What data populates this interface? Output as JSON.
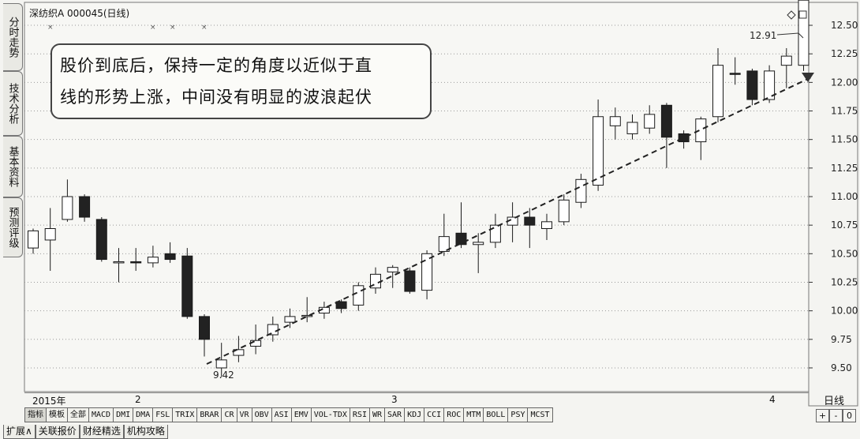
{
  "stock": {
    "name": "深纺织A",
    "code": "000045",
    "period": "(日线)"
  },
  "side_tabs": [
    "分时走势",
    "技术分析",
    "基本资料",
    "预测评级"
  ],
  "annotation": {
    "line1": "股价到底后，保持一定的角度以近似于直",
    "line2": "线的形势上涨，中间没有明显的波浪起伏"
  },
  "chart_data": {
    "type": "candlestick",
    "title": "",
    "ylim": [
      9.32,
      12.68
    ],
    "yticks": [
      "12.50",
      "12.25",
      "12.00",
      "11.75",
      "11.50",
      "11.25",
      "11.00",
      "10.75",
      "10.50",
      "10.25",
      "10.00",
      "9.75",
      "9.50"
    ],
    "date_labels": [
      "2015年",
      "2",
      "3",
      "4"
    ],
    "grid": true,
    "candles": [
      {
        "o": 10.55,
        "c": 10.7,
        "h": 10.72,
        "l": 10.5
      },
      {
        "o": 10.62,
        "c": 10.72,
        "h": 10.9,
        "l": 10.35
      },
      {
        "o": 10.8,
        "c": 11.0,
        "h": 11.15,
        "l": 10.78
      },
      {
        "o": 11.0,
        "c": 10.82,
        "h": 11.02,
        "l": 10.78
      },
      {
        "o": 10.8,
        "c": 10.45,
        "h": 10.82,
        "l": 10.43
      },
      {
        "o": 10.43,
        "c": 10.43,
        "h": 10.55,
        "l": 10.25
      },
      {
        "o": 10.43,
        "c": 10.42,
        "h": 10.55,
        "l": 10.35
      },
      {
        "o": 10.42,
        "c": 10.47,
        "h": 10.57,
        "l": 10.38
      },
      {
        "o": 10.5,
        "c": 10.45,
        "h": 10.6,
        "l": 10.42
      },
      {
        "o": 10.48,
        "c": 9.95,
        "h": 10.55,
        "l": 9.93
      },
      {
        "o": 9.95,
        "c": 9.75,
        "h": 9.97,
        "l": 9.6
      },
      {
        "o": 9.5,
        "c": 9.57,
        "h": 9.72,
        "l": 9.42
      },
      {
        "o": 9.61,
        "c": 9.66,
        "h": 9.78,
        "l": 9.55
      },
      {
        "o": 9.69,
        "c": 9.74,
        "h": 9.88,
        "l": 9.62
      },
      {
        "o": 9.79,
        "c": 9.88,
        "h": 9.95,
        "l": 9.73
      },
      {
        "o": 9.9,
        "c": 9.95,
        "h": 10.02,
        "l": 9.85
      },
      {
        "o": 9.96,
        "c": 9.96,
        "h": 10.12,
        "l": 9.9
      },
      {
        "o": 9.98,
        "c": 10.03,
        "h": 10.08,
        "l": 9.93
      },
      {
        "o": 10.08,
        "c": 10.02,
        "h": 10.1,
        "l": 9.98
      },
      {
        "o": 10.05,
        "c": 10.22,
        "h": 10.25,
        "l": 10.0
      },
      {
        "o": 10.2,
        "c": 10.32,
        "h": 10.38,
        "l": 10.15
      },
      {
        "o": 10.34,
        "c": 10.38,
        "h": 10.4,
        "l": 10.2
      },
      {
        "o": 10.35,
        "c": 10.17,
        "h": 10.38,
        "l": 10.15
      },
      {
        "o": 10.18,
        "c": 10.5,
        "h": 10.53,
        "l": 10.1
      },
      {
        "o": 10.52,
        "c": 10.65,
        "h": 10.85,
        "l": 10.48
      },
      {
        "o": 10.68,
        "c": 10.58,
        "h": 10.95,
        "l": 10.55
      },
      {
        "o": 10.58,
        "c": 10.6,
        "h": 10.68,
        "l": 10.33
      },
      {
        "o": 10.6,
        "c": 10.75,
        "h": 10.85,
        "l": 10.55
      },
      {
        "o": 10.75,
        "c": 10.82,
        "h": 10.95,
        "l": 10.6
      },
      {
        "o": 10.82,
        "c": 10.75,
        "h": 10.9,
        "l": 10.55
      },
      {
        "o": 10.72,
        "c": 10.78,
        "h": 10.85,
        "l": 10.62
      },
      {
        "o": 10.78,
        "c": 10.97,
        "h": 11.02,
        "l": 10.75
      },
      {
        "o": 10.95,
        "c": 11.15,
        "h": 11.2,
        "l": 10.9
      },
      {
        "o": 11.1,
        "c": 11.7,
        "h": 11.85,
        "l": 11.05
      },
      {
        "o": 11.62,
        "c": 11.7,
        "h": 11.78,
        "l": 11.5
      },
      {
        "o": 11.55,
        "c": 11.65,
        "h": 11.72,
        "l": 11.5
      },
      {
        "o": 11.6,
        "c": 11.72,
        "h": 11.8,
        "l": 11.55
      },
      {
        "o": 11.8,
        "c": 11.52,
        "h": 11.82,
        "l": 11.25
      },
      {
        "o": 11.55,
        "c": 11.48,
        "h": 11.58,
        "l": 11.42
      },
      {
        "o": 11.48,
        "c": 11.68,
        "h": 11.7,
        "l": 11.32
      },
      {
        "o": 11.7,
        "c": 12.15,
        "h": 12.3,
        "l": 11.65
      },
      {
        "o": 12.08,
        "c": 12.07,
        "h": 12.22,
        "l": 11.98
      },
      {
        "o": 12.1,
        "c": 11.85,
        "h": 12.12,
        "l": 11.8
      },
      {
        "o": 11.85,
        "c": 12.1,
        "h": 12.15,
        "l": 11.82
      },
      {
        "o": 12.15,
        "c": 12.23,
        "h": 12.3,
        "l": 11.95
      },
      {
        "o": 12.15,
        "c": 12.72,
        "h": 12.91,
        "l": 12.1
      }
    ],
    "marks": {
      "low": "9.42",
      "high": "12.91"
    }
  },
  "indicator_tabs": [
    "指标",
    "模板",
    "全部",
    "MACD",
    "DMI",
    "DMA",
    "FSL",
    "TRIX",
    "BRAR",
    "CR",
    "VR",
    "OBV",
    "ASI",
    "EMV",
    "VOL-TDX",
    "RSI",
    "WR",
    "SAR",
    "KDJ",
    "CCI",
    "ROC",
    "MTM",
    "BOLL",
    "PSY",
    "MCST"
  ],
  "bottom_tabs": [
    "扩展∧",
    "关联报价",
    "财经精选",
    "机构攻略"
  ],
  "period_label": "日线",
  "zoom": [
    "+",
    "-",
    "0"
  ],
  "colors": {
    "up": "#ffffff",
    "down": "#222222",
    "stroke": "#1a1a1a",
    "grid": "#9a9a9a"
  }
}
